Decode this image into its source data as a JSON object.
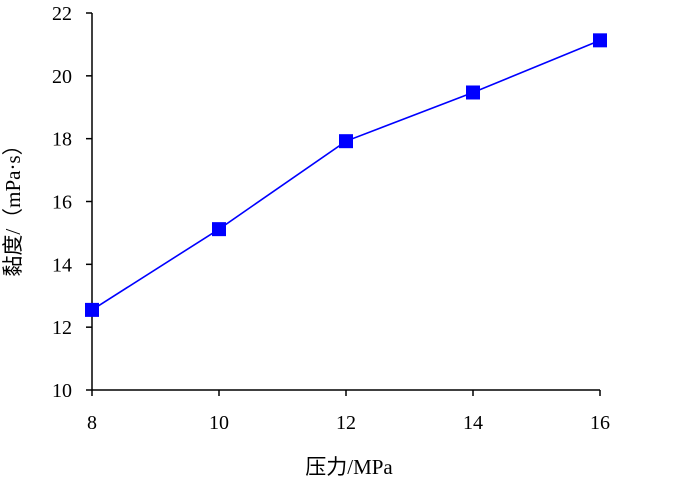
{
  "chart_data": {
    "type": "line",
    "title": "",
    "xlabel": "压力/MPa",
    "ylabel": "黏度/（mPa·s）",
    "xlim": [
      8,
      16
    ],
    "ylim": [
      10,
      22
    ],
    "x_ticks": [
      8,
      10,
      12,
      14,
      16
    ],
    "y_ticks": [
      10,
      12,
      14,
      16,
      18,
      20,
      22
    ],
    "grid": false,
    "legend": "none",
    "series": [
      {
        "x": [
          8,
          10,
          12,
          14,
          16
        ],
        "values": [
          12.55,
          15.12,
          17.92,
          19.47,
          21.13
        ],
        "color": "#0000ff",
        "marker": "square"
      }
    ]
  }
}
